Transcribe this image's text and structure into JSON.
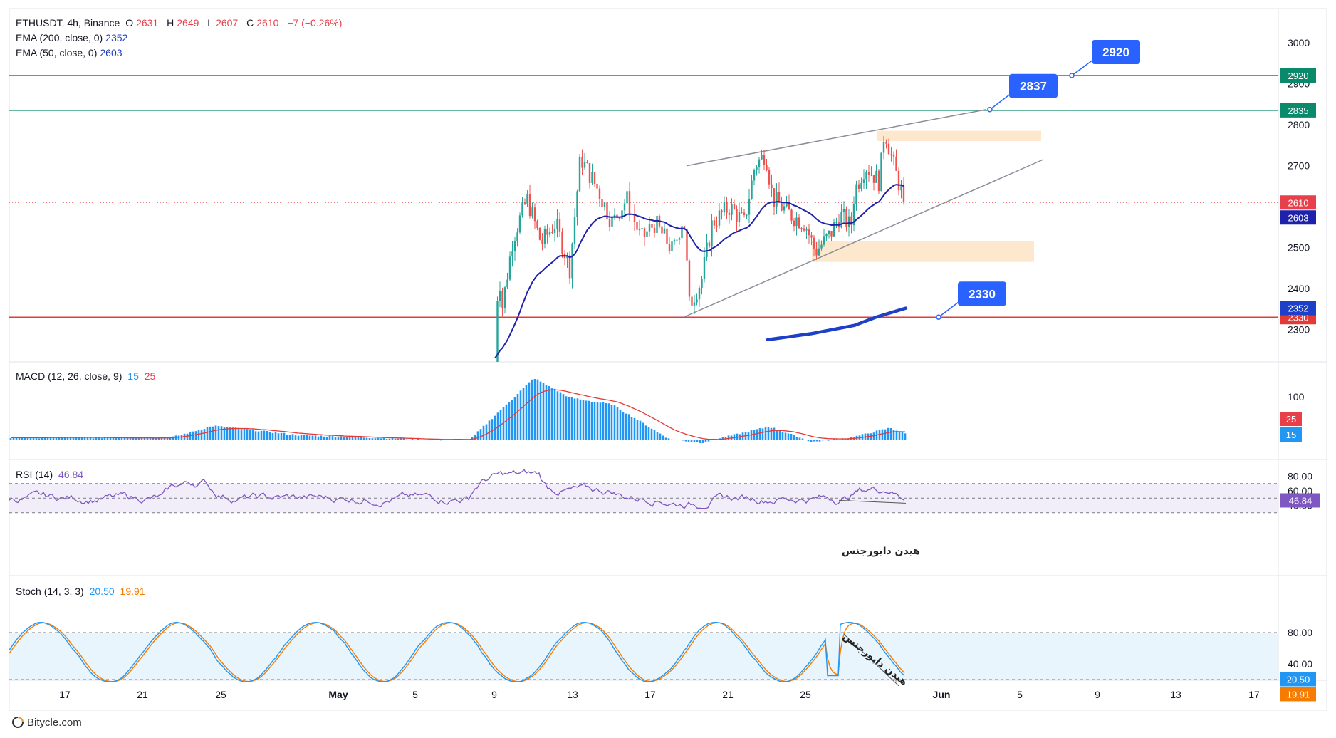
{
  "header": {
    "symbol": "ETHUSDT, 4h, Binance",
    "o_label": "O",
    "o": "2631",
    "h_label": "H",
    "h": "2649",
    "l_label": "L",
    "l": "2607",
    "c_label": "C",
    "c": "2610",
    "change": "−7 (−0.26%)",
    "ema200_label": "EMA (200, close, 0)",
    "ema200_value": "2352",
    "ema50_label": "EMA (50, close, 0)",
    "ema50_value": "2603"
  },
  "indicators": {
    "macd_label": "MACD (12, 26, close, 9)",
    "macd_value": "15",
    "signal_value": "25",
    "rsi_label": "RSI (14)",
    "rsi_value": "46.84",
    "stoch_label": "Stoch (14, 3, 3)",
    "stoch_k": "20.50",
    "stoch_d": "19.91"
  },
  "footer": {
    "brand": "Bitycle.com"
  },
  "colors": {
    "up": "#26a69a",
    "down": "#ef5350",
    "ema50": "#1e22aa",
    "ema200": "#1e40c8",
    "level_green": "#0b8a6b",
    "level_red": "#e53935",
    "callout": "#2962ff"
  },
  "chart_data": [
    {
      "type": "candlestick",
      "title": "ETHUSDT, 4h, Binance",
      "x_ticks": [
        "17",
        "21",
        "25",
        "May",
        "5",
        "9",
        "13",
        "17",
        "21",
        "25",
        "Jun",
        "5",
        "9",
        "13",
        "17"
      ],
      "y_ticks": [
        "3000",
        "2900",
        "2800",
        "2700",
        "2500",
        "2400",
        "2300"
      ],
      "ylim": [
        2290,
        3040
      ],
      "last": {
        "open": 2631,
        "high": 2649,
        "low": 2607,
        "close": 2610
      },
      "ema200_last": 2352,
      "ema50_last": 2603,
      "horizontal_levels": [
        {
          "value": 2920,
          "label": "2920",
          "color": "green"
        },
        {
          "value": 2835,
          "label": "2835",
          "color": "green"
        },
        {
          "value": 2330,
          "label": "2330",
          "color": "red"
        }
      ],
      "price_tags": [
        {
          "value": 2610,
          "label": "2610",
          "color": "red"
        },
        {
          "value": 2603,
          "label": "2603",
          "color": "navy"
        },
        {
          "value": 2352,
          "label": "2352",
          "color": "blue"
        }
      ],
      "callouts": [
        {
          "label": "2920",
          "value": 2920
        },
        {
          "label": "2837",
          "value": 2837
        },
        {
          "label": "2330",
          "value": 2330
        }
      ],
      "zones": [
        {
          "from": 2760,
          "to": 2785,
          "color": "orange"
        },
        {
          "from": 2465,
          "to": 2515,
          "color": "orange"
        }
      ]
    },
    {
      "type": "bar",
      "title": "MACD (12, 26, close, 9)",
      "y_ticks": [
        "100"
      ],
      "tags": [
        {
          "label": "25",
          "value": 25,
          "color": "red"
        },
        {
          "label": "15",
          "value": 15,
          "color": "sky"
        }
      ]
    },
    {
      "type": "line",
      "title": "RSI (14)",
      "y_ticks": [
        "80.00",
        "60.00",
        "40.00"
      ],
      "band": [
        30,
        70
      ],
      "last": 46.84,
      "tag": "46.84",
      "annotation": "هیدن دایورجنس"
    },
    {
      "type": "line",
      "title": "Stoch (14, 3, 3)",
      "y_ticks": [
        "80.00",
        "40.00"
      ],
      "band": [
        20,
        80
      ],
      "k_last": 20.5,
      "d_last": 19.91,
      "tags": [
        {
          "label": "20.50",
          "color": "sky"
        },
        {
          "label": "19.91",
          "color": "orange"
        }
      ],
      "annotation": "هیدن دایورجنس"
    }
  ]
}
